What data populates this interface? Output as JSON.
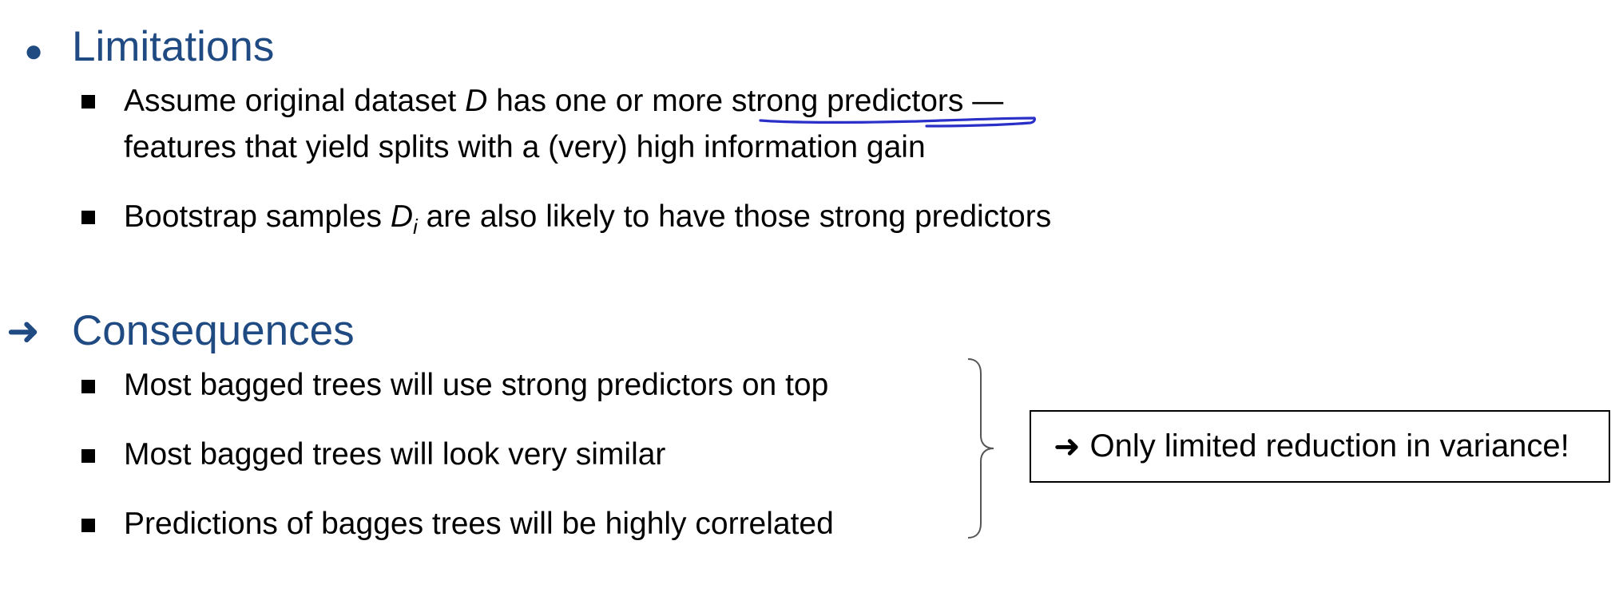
{
  "accent_color": "#1f4a82",
  "annotation_color": "#2a2fc8",
  "sections": {
    "limitations": {
      "marker": "●",
      "title": "Limitations",
      "items": [
        {
          "pre": "Assume original dataset ",
          "var": "D",
          "mid": " has one or more ",
          "highlight": "strong predictors",
          "post": " —",
          "line2": "features that yield splits with a (very) high information gain"
        },
        {
          "pre": "Bootstrap samples ",
          "var": "D",
          "sub": "i",
          "post": " are also likely to have those strong predictors"
        }
      ]
    },
    "consequences": {
      "marker": "➜",
      "title": "Consequences",
      "items": [
        "Most bagged trees will use strong predictors on top",
        "Most bagged trees will look very similar",
        "Predictions of bagges trees will be highly correlated"
      ]
    }
  },
  "callout": {
    "arrow": "➜",
    "text": "Only limited reduction in variance!"
  }
}
